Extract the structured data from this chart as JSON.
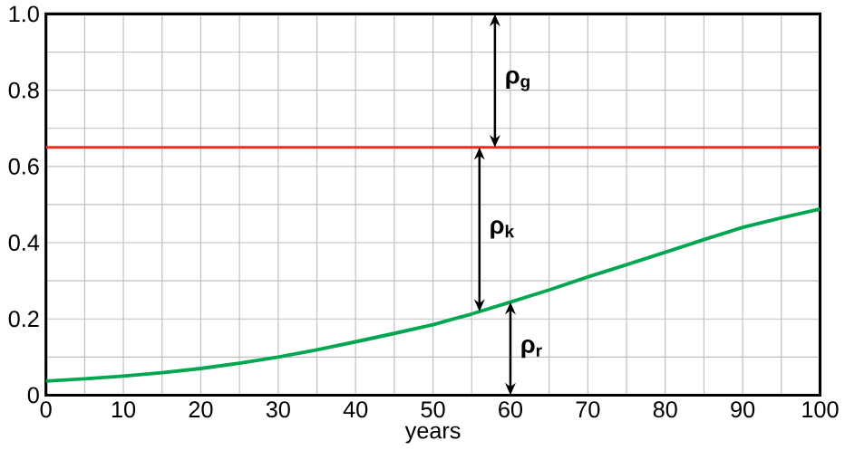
{
  "chart_data": {
    "type": "line",
    "xlabel": "years",
    "x": [
      0,
      5,
      10,
      15,
      20,
      25,
      30,
      35,
      40,
      45,
      50,
      55,
      60,
      65,
      70,
      75,
      80,
      85,
      90,
      95,
      100
    ],
    "series": [
      {
        "color": "#00a650",
        "values": [
          0.037,
          0.043,
          0.05,
          0.059,
          0.07,
          0.084,
          0.1,
          0.119,
          0.14,
          0.162,
          0.185,
          0.213,
          0.244,
          0.276,
          0.31,
          0.342,
          0.375,
          0.408,
          0.44,
          0.465,
          0.488
        ]
      }
    ],
    "ref_lines": [
      {
        "axis": "y",
        "value": 0.65,
        "color": "#ff2a1a"
      }
    ],
    "annotations": [
      "ρ$_{g}$",
      "ρ$_{k}$",
      "ρ$_{r}$"
    ],
    "xlim": [
      0,
      100
    ],
    "ylim": [
      0,
      1
    ],
    "xticks": [
      0,
      {
        "value": 5,
        "label": null
      },
      10,
      {
        "value": 15,
        "label": null
      },
      20,
      {
        "value": 25,
        "label": null
      },
      30,
      {
        "value": 35,
        "label": null
      },
      40,
      {
        "value": 45,
        "label": null
      },
      50,
      {
        "value": 55,
        "label": null
      },
      60,
      {
        "value": 65,
        "label": null
      },
      70,
      {
        "value": 75,
        "label": null
      },
      80,
      {
        "value": 85,
        "label": null
      },
      90,
      {
        "value": 95,
        "label": null
      },
      100
    ],
    "yticks": [
      0,
      {
        "value": 0.1,
        "label": null
      },
      0.2,
      {
        "value": 0.3,
        "label": null
      },
      0.4,
      {
        "value": 0.5,
        "label": null
      },
      0.6,
      {
        "value": 0.7,
        "label": null
      },
      0.8,
      {
        "value": 0.9,
        "label": null
      },
      {
        "value": 1,
        "label": "1.0"
      }
    ],
    "grid": true
  }
}
